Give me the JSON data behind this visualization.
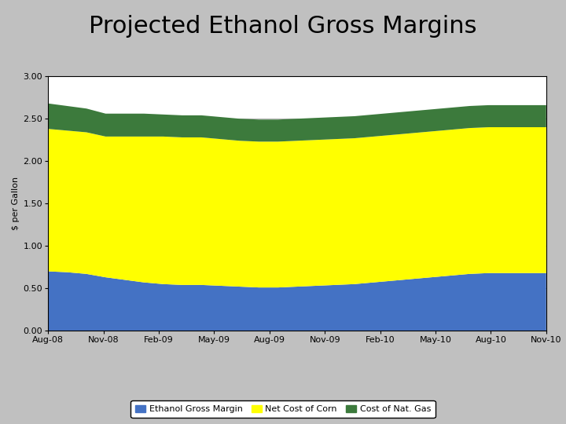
{
  "title": "Projected Ethanol Gross Margins",
  "ylabel": "$ per Gallon",
  "ylim": [
    0.0,
    3.0
  ],
  "yticks": [
    0.0,
    0.5,
    1.0,
    1.5,
    2.0,
    2.5,
    3.0
  ],
  "x_labels": [
    "Aug-08",
    "Nov-08",
    "Feb-09",
    "May-09",
    "Aug-09",
    "Nov-09",
    "Feb-10",
    "May-10",
    "Aug-10",
    "Nov-10"
  ],
  "background_color": "#c0c0c0",
  "plot_bg_color": "#ffffff",
  "title_fontsize": 22,
  "axis_fontsize": 8,
  "ylabel_fontsize": 8,
  "colors": {
    "ethanol": "#4472c4",
    "corn": "#ffff00",
    "gas": "#3c7a3c"
  },
  "legend_labels": [
    "Ethanol Gross Margin",
    "Net Cost of Corn",
    "Cost of Nat. Gas"
  ],
  "n_points": 27,
  "ethanol_gross_margin": [
    0.7,
    0.69,
    0.67,
    0.63,
    0.6,
    0.57,
    0.55,
    0.54,
    0.54,
    0.53,
    0.52,
    0.51,
    0.51,
    0.52,
    0.53,
    0.54,
    0.55,
    0.57,
    0.59,
    0.61,
    0.63,
    0.65,
    0.67,
    0.68,
    0.68,
    0.68,
    0.68
  ],
  "net_cost_corn": [
    1.68,
    1.67,
    1.67,
    1.66,
    1.69,
    1.72,
    1.74,
    1.74,
    1.74,
    1.73,
    1.72,
    1.72,
    1.72,
    1.72,
    1.72,
    1.72,
    1.72,
    1.72,
    1.72,
    1.72,
    1.72,
    1.72,
    1.72,
    1.72,
    1.72,
    1.72,
    1.72
  ],
  "cost_nat_gas": [
    0.3,
    0.29,
    0.28,
    0.27,
    0.27,
    0.27,
    0.26,
    0.26,
    0.26,
    0.26,
    0.26,
    0.26,
    0.26,
    0.26,
    0.26,
    0.26,
    0.26,
    0.26,
    0.26,
    0.26,
    0.26,
    0.26,
    0.26,
    0.26,
    0.26,
    0.26,
    0.26
  ]
}
